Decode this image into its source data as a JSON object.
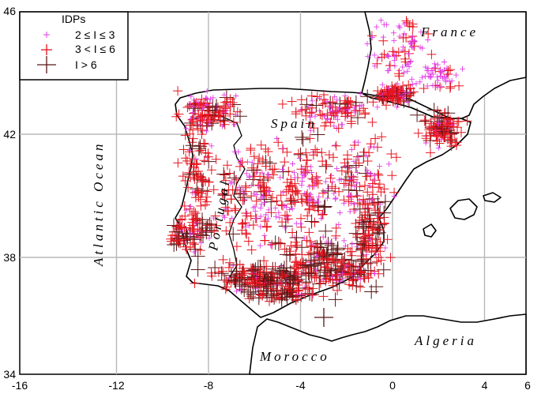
{
  "legend": {
    "title": "IDPs",
    "items": [
      {
        "label": "2 ≤ I ≤ 3",
        "color": "#e23ce6",
        "symbol": "small-plus"
      },
      {
        "label": "3 < I ≤ 6",
        "color": "#e8141e",
        "symbol": "medium-plus"
      },
      {
        "label": "I > 6",
        "color": "#5a1616",
        "symbol": "large-plus"
      }
    ]
  },
  "axes": {
    "x_ticks": [
      "-16",
      "-12",
      "-8",
      "-4",
      "0",
      "4",
      "6"
    ],
    "y_ticks": [
      "46",
      "42",
      "38",
      "34"
    ],
    "xlim": [
      -16,
      6
    ],
    "ylim": [
      34,
      46
    ]
  },
  "labels": {
    "ocean": "Atlantic Ocean",
    "france": "France",
    "spain": "Spain",
    "portugal": "Portugal",
    "morocco": "Morocco",
    "algeria": "Algeria"
  },
  "colors": {
    "low": "#e23ce6",
    "mid": "#e8141e",
    "high": "#5a1616",
    "grid": "#b8b8b8"
  }
}
